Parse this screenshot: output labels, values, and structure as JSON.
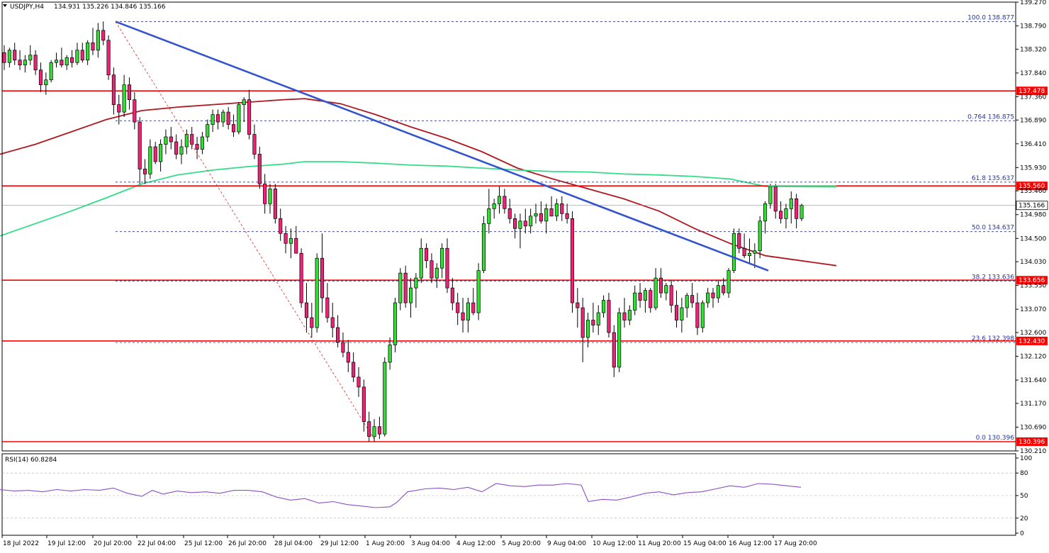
{
  "header": {
    "symbol": "USDJPY,H4",
    "ohlc": "134.931 135.226 134.846 135.166"
  },
  "chart_data": {
    "type": "candlestick",
    "price_range": [
      130.21,
      139.27
    ],
    "price_ticks": [
      "139.270",
      "138.790",
      "138.320",
      "137.840",
      "137.360",
      "136.890",
      "136.410",
      "135.930",
      "135.460",
      "134.980",
      "134.500",
      "134.030",
      "133.550",
      "133.070",
      "132.600",
      "132.120",
      "131.640",
      "131.170",
      "130.690",
      "130.210"
    ],
    "current_price_label": "135.166",
    "current_price": 135.166,
    "time_labels": [
      "18 Jul 2022",
      "19 Jul 12:00",
      "20 Jul 20:00",
      "22 Jul 04:00",
      "25 Jul 12:00",
      "26 Jul 20:00",
      "28 Jul 04:00",
      "29 Jul 12:00",
      "1 Aug 20:00",
      "3 Aug 04:00",
      "4 Aug 12:00",
      "5 Aug 20:00",
      "9 Aug 04:00",
      "10 Aug 12:00",
      "11 Aug 20:00",
      "15 Aug 04:00",
      "16 Aug 12:00",
      "17 Aug 20:00"
    ],
    "horizontal_levels": [
      {
        "price": 137.478,
        "label": "137.478",
        "color": "#ff0000"
      },
      {
        "price": 135.56,
        "label": "135.560",
        "color": "#ff0000"
      },
      {
        "price": 133.656,
        "label": "133.656",
        "color": "#ff0000"
      },
      {
        "price": 132.43,
        "label": "132.430",
        "color": "#ff0000"
      },
      {
        "price": 130.396,
        "label": "130.396",
        "color": "#ff0000"
      }
    ],
    "fibonacci": [
      {
        "label": "100.0 138.877",
        "price": 138.877
      },
      {
        "label": "0.764 136.875",
        "price": 136.875
      },
      {
        "label": "61.8 135.637",
        "price": 135.637
      },
      {
        "label": "50.0 134.637",
        "price": 134.637
      },
      {
        "label": "38.2 133.636",
        "price": 133.636
      },
      {
        "label": "23.6 132.398",
        "price": 132.398
      },
      {
        "label": "0.0 130.396",
        "price": 130.396
      }
    ],
    "candles_ohlc": [
      [
        138.25,
        138.4,
        137.9,
        138.05
      ],
      [
        138.05,
        138.35,
        137.95,
        138.3
      ],
      [
        138.3,
        138.45,
        138.0,
        138.1
      ],
      [
        138.1,
        138.3,
        137.9,
        138.0
      ],
      [
        138.0,
        138.2,
        137.85,
        138.1
      ],
      [
        138.1,
        138.4,
        138.0,
        138.2
      ],
      [
        138.2,
        138.3,
        137.8,
        137.9
      ],
      [
        137.9,
        138.05,
        137.45,
        137.6
      ],
      [
        137.6,
        137.85,
        137.4,
        137.7
      ],
      [
        137.7,
        138.1,
        137.65,
        138.05
      ],
      [
        138.05,
        138.25,
        137.95,
        138.1
      ],
      [
        138.1,
        138.35,
        137.95,
        138.0
      ],
      [
        138.0,
        138.2,
        137.9,
        138.15
      ],
      [
        138.15,
        138.3,
        137.95,
        138.05
      ],
      [
        138.05,
        138.45,
        138.0,
        138.3
      ],
      [
        138.3,
        138.45,
        138.05,
        138.1
      ],
      [
        138.1,
        138.5,
        138.0,
        138.45
      ],
      [
        138.45,
        138.75,
        138.2,
        138.3
      ],
      [
        138.3,
        138.85,
        138.15,
        138.7
      ],
      [
        138.7,
        138.88,
        138.4,
        138.5
      ],
      [
        138.5,
        138.6,
        137.7,
        137.8
      ],
      [
        137.8,
        137.95,
        137.0,
        137.2
      ],
      [
        137.2,
        137.4,
        136.8,
        137.05
      ],
      [
        137.05,
        137.8,
        136.95,
        137.6
      ],
      [
        137.6,
        137.75,
        137.1,
        137.3
      ],
      [
        137.3,
        137.45,
        136.7,
        136.85
      ],
      [
        136.85,
        136.95,
        135.6,
        135.9
      ],
      [
        135.9,
        136.1,
        135.6,
        135.8
      ],
      [
        135.8,
        136.5,
        135.7,
        136.35
      ],
      [
        136.35,
        136.45,
        136.0,
        136.05
      ],
      [
        136.05,
        136.5,
        135.85,
        136.4
      ],
      [
        136.4,
        136.7,
        136.2,
        136.55
      ],
      [
        136.55,
        136.75,
        136.3,
        136.45
      ],
      [
        136.45,
        136.6,
        136.1,
        136.2
      ],
      [
        136.2,
        136.5,
        136.0,
        136.35
      ],
      [
        136.35,
        136.7,
        136.2,
        136.6
      ],
      [
        136.6,
        136.75,
        136.3,
        136.4
      ],
      [
        136.4,
        136.55,
        136.1,
        136.3
      ],
      [
        136.3,
        136.65,
        136.2,
        136.55
      ],
      [
        136.55,
        136.9,
        136.45,
        136.8
      ],
      [
        136.8,
        137.1,
        136.65,
        137.0
      ],
      [
        137.0,
        137.1,
        136.7,
        136.85
      ],
      [
        136.85,
        137.1,
        136.75,
        137.05
      ],
      [
        137.05,
        137.15,
        136.7,
        136.8
      ],
      [
        136.8,
        137.0,
        136.55,
        136.65
      ],
      [
        136.65,
        137.25,
        136.6,
        137.2
      ],
      [
        137.2,
        137.35,
        136.85,
        137.3
      ],
      [
        137.3,
        137.5,
        136.5,
        136.6
      ],
      [
        136.6,
        136.8,
        136.1,
        136.2
      ],
      [
        136.2,
        136.35,
        135.5,
        135.6
      ],
      [
        135.6,
        135.8,
        135.0,
        135.2
      ],
      [
        135.2,
        135.6,
        135.0,
        135.5
      ],
      [
        135.5,
        135.6,
        134.8,
        134.9
      ],
      [
        134.9,
        135.1,
        134.45,
        134.6
      ],
      [
        134.6,
        134.75,
        134.2,
        134.4
      ],
      [
        134.4,
        134.7,
        134.1,
        134.5
      ],
      [
        134.5,
        134.75,
        134.3,
        134.2
      ],
      [
        134.2,
        134.3,
        133.1,
        133.2
      ],
      [
        133.2,
        133.6,
        132.6,
        132.9
      ],
      [
        132.9,
        133.2,
        132.5,
        132.7
      ],
      [
        132.7,
        134.2,
        132.6,
        134.1
      ],
      [
        134.1,
        134.6,
        133.0,
        133.3
      ],
      [
        133.3,
        133.6,
        132.8,
        132.9
      ],
      [
        132.9,
        133.2,
        132.5,
        132.7
      ],
      [
        132.7,
        132.95,
        132.3,
        132.4
      ],
      [
        132.4,
        132.6,
        132.1,
        132.2
      ],
      [
        132.2,
        132.45,
        131.8,
        132.0
      ],
      [
        132.0,
        132.2,
        131.6,
        131.7
      ],
      [
        131.7,
        131.9,
        131.3,
        131.5
      ],
      [
        131.5,
        131.65,
        130.6,
        130.8
      ],
      [
        130.8,
        131.0,
        130.4,
        130.5
      ],
      [
        130.5,
        130.85,
        130.4,
        130.7
      ],
      [
        130.7,
        130.9,
        130.45,
        130.55
      ],
      [
        130.55,
        132.1,
        130.5,
        132.0
      ],
      [
        132.0,
        132.5,
        131.85,
        132.35
      ],
      [
        132.35,
        133.3,
        132.2,
        133.2
      ],
      [
        133.2,
        133.9,
        133.05,
        133.8
      ],
      [
        133.8,
        133.95,
        133.1,
        133.2
      ],
      [
        133.2,
        133.7,
        132.9,
        133.5
      ],
      [
        133.5,
        133.8,
        133.1,
        133.7
      ],
      [
        133.7,
        134.5,
        133.6,
        134.3
      ],
      [
        134.3,
        134.4,
        133.9,
        134.05
      ],
      [
        134.05,
        134.2,
        133.6,
        133.7
      ],
      [
        133.7,
        134.0,
        133.5,
        133.9
      ],
      [
        133.9,
        134.4,
        133.7,
        134.3
      ],
      [
        134.3,
        134.5,
        133.4,
        133.5
      ],
      [
        133.5,
        133.7,
        133.05,
        133.2
      ],
      [
        133.2,
        133.4,
        132.75,
        133.0
      ],
      [
        133.0,
        133.3,
        132.6,
        132.85
      ],
      [
        132.85,
        133.3,
        132.6,
        133.2
      ],
      [
        133.2,
        133.5,
        132.95,
        133.0
      ],
      [
        133.0,
        134.0,
        132.85,
        133.85
      ],
      [
        133.85,
        134.95,
        133.8,
        134.8
      ],
      [
        134.8,
        135.5,
        134.6,
        135.1
      ],
      [
        135.1,
        135.3,
        134.9,
        135.2
      ],
      [
        135.2,
        135.55,
        135.0,
        135.35
      ],
      [
        135.35,
        135.5,
        135.0,
        135.1
      ],
      [
        135.1,
        135.3,
        134.8,
        134.9
      ],
      [
        134.9,
        135.0,
        134.5,
        134.7
      ],
      [
        134.7,
        135.0,
        134.3,
        134.85
      ],
      [
        134.85,
        135.1,
        134.6,
        134.75
      ],
      [
        134.75,
        135.1,
        134.6,
        134.95
      ],
      [
        134.95,
        135.2,
        134.8,
        135.0
      ],
      [
        135.0,
        135.25,
        134.8,
        134.85
      ],
      [
        134.85,
        135.2,
        134.6,
        135.1
      ],
      [
        135.1,
        135.35,
        134.95,
        134.95
      ],
      [
        134.95,
        135.3,
        134.85,
        135.2
      ],
      [
        135.2,
        135.35,
        134.85,
        135.0
      ],
      [
        135.0,
        135.2,
        134.8,
        134.9
      ],
      [
        134.9,
        135.05,
        133.0,
        133.2
      ],
      [
        133.2,
        133.5,
        132.7,
        133.1
      ],
      [
        133.1,
        133.3,
        132.0,
        132.5
      ],
      [
        132.5,
        133.0,
        132.3,
        132.85
      ],
      [
        132.85,
        133.2,
        132.6,
        132.75
      ],
      [
        132.75,
        133.15,
        132.55,
        133.0
      ],
      [
        133.0,
        133.35,
        132.9,
        133.25
      ],
      [
        133.25,
        133.4,
        132.5,
        132.6
      ],
      [
        132.6,
        132.75,
        131.7,
        131.9
      ],
      [
        131.9,
        133.1,
        131.8,
        133.0
      ],
      [
        133.0,
        133.3,
        132.7,
        132.85
      ],
      [
        132.85,
        133.15,
        132.75,
        133.05
      ],
      [
        133.05,
        133.55,
        132.95,
        133.4
      ],
      [
        133.4,
        133.6,
        133.1,
        133.25
      ],
      [
        133.25,
        133.5,
        133.0,
        133.45
      ],
      [
        133.45,
        133.5,
        133.0,
        133.1
      ],
      [
        133.1,
        133.9,
        133.05,
        133.7
      ],
      [
        133.7,
        133.9,
        133.3,
        133.4
      ],
      [
        133.4,
        133.6,
        133.25,
        133.55
      ],
      [
        133.55,
        133.65,
        133.0,
        133.15
      ],
      [
        133.15,
        133.45,
        132.7,
        132.85
      ],
      [
        132.85,
        133.3,
        132.6,
        133.1
      ],
      [
        133.1,
        133.4,
        132.9,
        133.35
      ],
      [
        133.35,
        133.6,
        133.1,
        133.2
      ],
      [
        133.2,
        133.4,
        132.55,
        132.7
      ],
      [
        132.7,
        133.25,
        132.6,
        133.2
      ],
      [
        133.2,
        133.5,
        133.1,
        133.4
      ],
      [
        133.4,
        133.5,
        133.1,
        133.3
      ],
      [
        133.3,
        133.65,
        133.2,
        133.55
      ],
      [
        133.55,
        133.7,
        133.35,
        133.4
      ],
      [
        133.4,
        133.9,
        133.3,
        133.85
      ],
      [
        133.85,
        134.7,
        133.8,
        134.6
      ],
      [
        134.6,
        134.7,
        134.2,
        134.3
      ],
      [
        134.3,
        134.6,
        134.1,
        134.15
      ],
      [
        134.15,
        134.5,
        134.0,
        134.2
      ],
      [
        134.2,
        134.4,
        133.9,
        134.25
      ],
      [
        134.25,
        134.95,
        134.1,
        134.85
      ],
      [
        134.85,
        135.25,
        134.6,
        135.2
      ],
      [
        135.2,
        135.6,
        135.1,
        135.55
      ],
      [
        135.55,
        135.6,
        134.9,
        135.05
      ],
      [
        135.05,
        135.25,
        134.8,
        134.9
      ],
      [
        134.9,
        135.2,
        134.7,
        135.1
      ],
      [
        135.1,
        135.45,
        134.8,
        135.3
      ],
      [
        135.3,
        135.4,
        134.7,
        134.9
      ],
      [
        134.9,
        135.2,
        134.85,
        135.166
      ]
    ],
    "ma_red": [
      [
        0,
        136.2
      ],
      [
        50,
        136.4
      ],
      [
        100,
        136.65
      ],
      [
        150,
        136.9
      ],
      [
        200,
        137.08
      ],
      [
        250,
        137.15
      ],
      [
        300,
        137.2
      ],
      [
        350,
        137.25
      ],
      [
        400,
        137.3
      ],
      [
        430,
        137.32
      ],
      [
        480,
        137.22
      ],
      [
        530,
        137.0
      ],
      [
        580,
        136.75
      ],
      [
        630,
        136.52
      ],
      [
        680,
        136.25
      ],
      [
        730,
        135.92
      ],
      [
        780,
        135.7
      ],
      [
        830,
        135.5
      ],
      [
        880,
        135.3
      ],
      [
        930,
        135.05
      ],
      [
        980,
        134.7
      ],
      [
        1030,
        134.4
      ],
      [
        1080,
        134.15
      ],
      [
        1130,
        134.05
      ],
      [
        1180,
        133.95
      ]
    ],
    "ma_green": [
      [
        0,
        134.55
      ],
      [
        50,
        134.8
      ],
      [
        100,
        135.05
      ],
      [
        150,
        135.32
      ],
      [
        200,
        135.6
      ],
      [
        250,
        135.78
      ],
      [
        300,
        135.88
      ],
      [
        350,
        135.95
      ],
      [
        400,
        136.0
      ],
      [
        430,
        136.05
      ],
      [
        480,
        136.05
      ],
      [
        530,
        136.02
      ],
      [
        580,
        135.98
      ],
      [
        630,
        135.96
      ],
      [
        680,
        135.92
      ],
      [
        730,
        135.88
      ],
      [
        780,
        135.85
      ],
      [
        830,
        135.84
      ],
      [
        880,
        135.8
      ],
      [
        930,
        135.78
      ],
      [
        980,
        135.75
      ],
      [
        1030,
        135.7
      ],
      [
        1080,
        135.55
      ],
      [
        1180,
        135.54
      ]
    ],
    "trendline": {
      "color": "#3355cc",
      "from_price": 138.877,
      "to_price": 133.85
    },
    "fib_diagonal": {
      "from_price": 138.877,
      "to_price": 130.396
    },
    "rsi": {
      "label": "RSI(14) 60.8284",
      "levels": [
        "100",
        "80",
        "50",
        "20",
        "0"
      ],
      "dashed_levels": [
        80,
        50,
        20
      ],
      "color": "#8b4fc7",
      "values": [
        [
          0,
          58
        ],
        [
          20,
          56
        ],
        [
          40,
          57
        ],
        [
          60,
          55
        ],
        [
          80,
          58
        ],
        [
          100,
          56
        ],
        [
          120,
          58
        ],
        [
          140,
          57
        ],
        [
          160,
          60
        ],
        [
          180,
          53
        ],
        [
          200,
          49
        ],
        [
          215,
          57
        ],
        [
          230,
          52
        ],
        [
          250,
          56
        ],
        [
          270,
          54
        ],
        [
          290,
          55
        ],
        [
          310,
          53
        ],
        [
          330,
          57
        ],
        [
          350,
          57
        ],
        [
          370,
          55
        ],
        [
          390,
          48
        ],
        [
          410,
          44
        ],
        [
          430,
          46
        ],
        [
          450,
          40
        ],
        [
          470,
          42
        ],
        [
          490,
          38
        ],
        [
          510,
          36
        ],
        [
          530,
          34
        ],
        [
          550,
          35
        ],
        [
          560,
          41
        ],
        [
          575,
          55
        ],
        [
          600,
          59
        ],
        [
          620,
          60
        ],
        [
          640,
          58
        ],
        [
          660,
          61
        ],
        [
          680,
          55
        ],
        [
          700,
          66
        ],
        [
          720,
          63
        ],
        [
          740,
          62
        ],
        [
          760,
          64
        ],
        [
          780,
          64
        ],
        [
          800,
          66
        ],
        [
          820,
          64
        ],
        [
          830,
          42
        ],
        [
          850,
          45
        ],
        [
          870,
          44
        ],
        [
          890,
          48
        ],
        [
          910,
          53
        ],
        [
          930,
          55
        ],
        [
          950,
          51
        ],
        [
          970,
          54
        ],
        [
          990,
          55
        ],
        [
          1010,
          59
        ],
        [
          1030,
          63
        ],
        [
          1050,
          61
        ],
        [
          1070,
          66
        ],
        [
          1090,
          65
        ],
        [
          1110,
          63
        ],
        [
          1130,
          61
        ]
      ]
    }
  }
}
